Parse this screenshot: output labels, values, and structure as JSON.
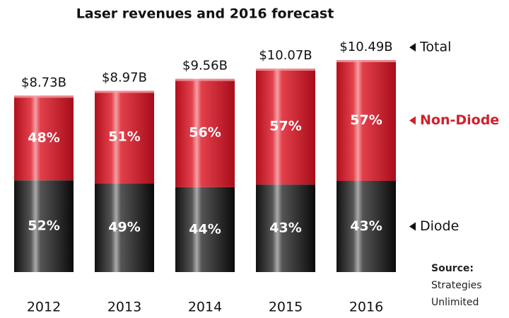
{
  "chart_data": {
    "type": "stacked-bar",
    "title": "Laser revenues and 2016 forecast",
    "categories": [
      "2012",
      "2013",
      "2014",
      "2015",
      "2016"
    ],
    "series": [
      {
        "name": "Diode",
        "color": "#262626",
        "values": [
          52,
          49,
          44,
          43,
          43
        ],
        "value_labels": [
          "52%",
          "49%",
          "44%",
          "43%",
          "43%"
        ]
      },
      {
        "name": "Non-Diode",
        "color": "#d21f2d",
        "values": [
          48,
          51,
          56,
          57,
          57
        ],
        "value_labels": [
          "48%",
          "51%",
          "56%",
          "57%",
          "57%"
        ]
      }
    ],
    "total": {
      "name": "Total",
      "values": [
        8.73,
        8.97,
        9.56,
        10.07,
        10.49
      ],
      "value_labels": [
        "$8.73B",
        "$8.97B",
        "$9.56B",
        "$10.07B",
        "$10.49B"
      ]
    },
    "source": {
      "label": "Source:",
      "lines": [
        "Strategies",
        "Unlimited"
      ]
    }
  }
}
